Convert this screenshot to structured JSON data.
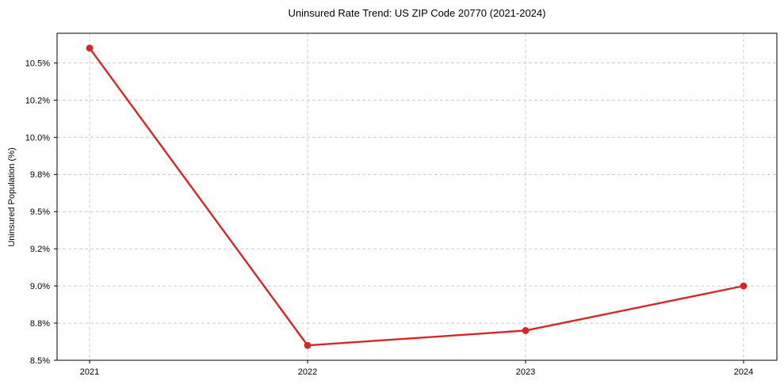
{
  "chart_data": {
    "type": "line",
    "title": "Uninsured Rate Trend: US ZIP Code 20770 (2021-2024)",
    "ylabel": "Uninsured Population (%)",
    "xlabel": "",
    "categories": [
      "2021",
      "2022",
      "2023",
      "2024"
    ],
    "values": [
      10.6,
      8.6,
      8.7,
      9.0
    ],
    "ylim": [
      8.5,
      10.7
    ],
    "y_ticks": [
      {
        "value": 8.5,
        "label": "8.5%"
      },
      {
        "value": 8.75,
        "label": "8.8%"
      },
      {
        "value": 9.0,
        "label": "9.0%"
      },
      {
        "value": 9.25,
        "label": "9.2%"
      },
      {
        "value": 9.5,
        "label": "9.5%"
      },
      {
        "value": 9.75,
        "label": "9.8%"
      },
      {
        "value": 10.0,
        "label": "10.0%"
      },
      {
        "value": 10.25,
        "label": "10.2%"
      },
      {
        "value": 10.5,
        "label": "10.5%"
      }
    ],
    "grid": true,
    "grid_style": "dashed",
    "legend_position": "none",
    "colors": {
      "line": "#d62728",
      "marker": "#d62728",
      "grid": "#cccccc",
      "spine": "#000000",
      "text": "#000000",
      "background": "#ffffff"
    }
  }
}
